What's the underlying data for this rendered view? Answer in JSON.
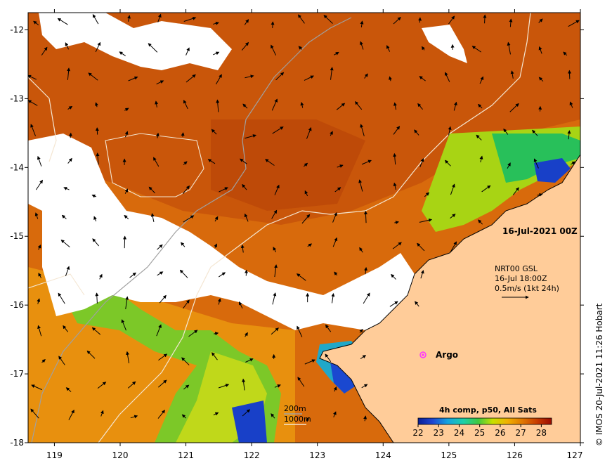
{
  "map": {
    "lon_range": [
      118.6,
      127.0
    ],
    "lat_range": [
      -18.0,
      -11.75
    ],
    "lon_ticks": [
      119,
      120,
      121,
      122,
      123,
      124,
      125,
      126,
      127
    ],
    "lat_ticks": [
      -12,
      -13,
      -14,
      -15,
      -16,
      -17,
      -18
    ],
    "lon_tick_labels": [
      "119",
      "120",
      "121",
      "122",
      "123",
      "124",
      "125",
      "126",
      "127"
    ],
    "lat_tick_labels": [
      "-12",
      "-13",
      "-14",
      "-15",
      "-16",
      "-17",
      "-18"
    ],
    "colors": {
      "land": "#FFCC99",
      "cloud": "#FFFFFF",
      "ocean_warm": "#D2620A",
      "ocean_mid": "#E88A0C",
      "isobath_grey": "#A0A0A0",
      "isobath_white": "#F4E6D2",
      "argo_marker": "#FF33FF"
    }
  },
  "annotations": {
    "date": "16-Jul-2021 00Z",
    "current_source": "NRT00 GSL",
    "current_time": "16-Jul 18:00Z",
    "vector_scale": "0.5m/s (1kt 24h)",
    "argo_label": "Argo",
    "isobath_200": "200m",
    "isobath_1000": "1000m",
    "credit": "© IMOS 20-Jul-2021 11:26 Hobart"
  },
  "colorbar": {
    "title": "4h comp, p50, All Sats",
    "range": [
      22,
      28.5
    ],
    "ticks": [
      22,
      23,
      24,
      25,
      26,
      27,
      28
    ],
    "tick_labels": [
      "22",
      "23",
      "24",
      "25",
      "26",
      "27",
      "28"
    ],
    "stops": [
      "#0A1E96",
      "#1F46D2",
      "#16A2E0",
      "#1ED0A8",
      "#40C840",
      "#C8E000",
      "#F0B000",
      "#E07800",
      "#C83C00",
      "#9A0A00"
    ]
  }
}
